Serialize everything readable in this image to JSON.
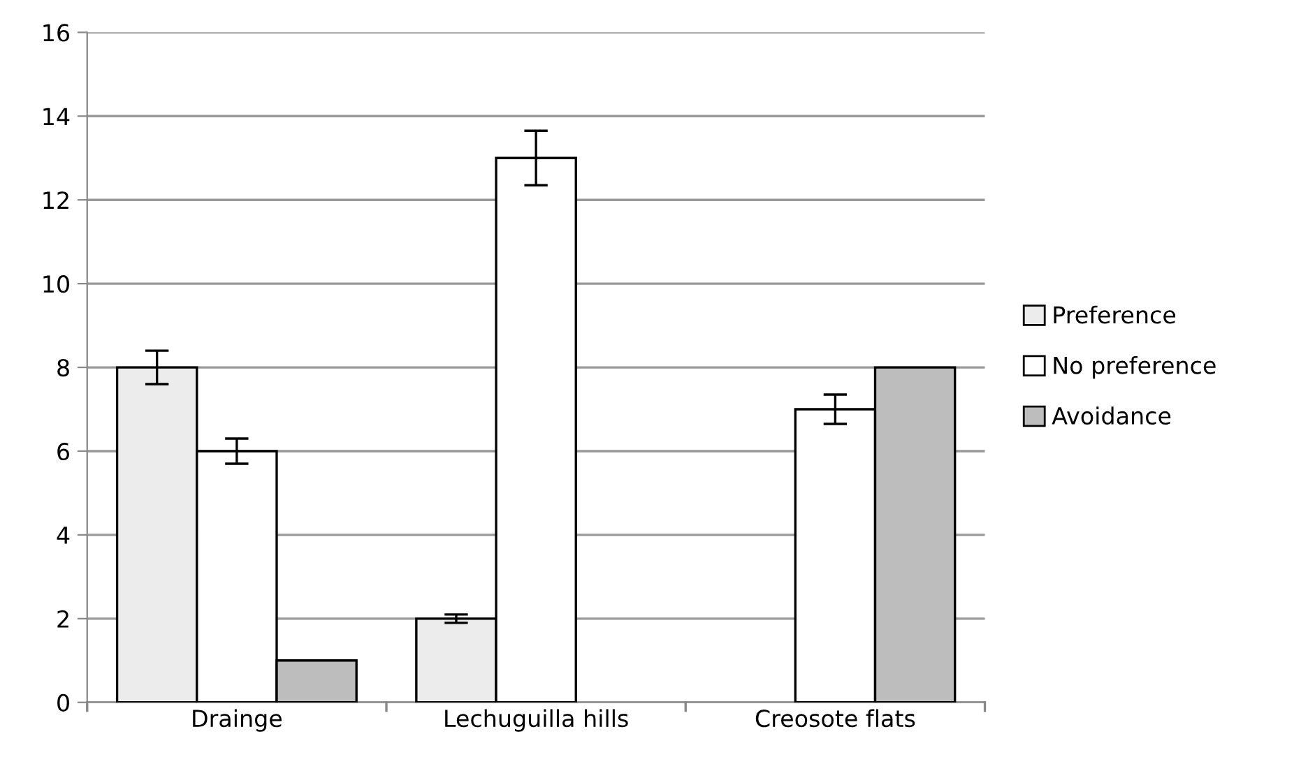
{
  "chart_data": {
    "type": "bar",
    "categories": [
      "Drainge",
      "Lechuguilla hills",
      "Creosote flats"
    ],
    "series": [
      {
        "name": "Preference",
        "color": "#ececec",
        "values": [
          8,
          2,
          0
        ],
        "errors": [
          0.4,
          0.1,
          null
        ]
      },
      {
        "name": "No preference",
        "color": "#ffffff",
        "values": [
          6,
          13,
          7
        ],
        "errors": [
          0.3,
          0.65,
          0.35
        ]
      },
      {
        "name": "Avoidance",
        "color": "#bdbdbd",
        "values": [
          1,
          0,
          8
        ],
        "errors": [
          null,
          null,
          null
        ]
      }
    ],
    "ylim": [
      0,
      16
    ],
    "yticks": [
      0,
      2,
      4,
      6,
      8,
      10,
      12,
      14,
      16
    ],
    "grid": "y",
    "legend": "right"
  }
}
